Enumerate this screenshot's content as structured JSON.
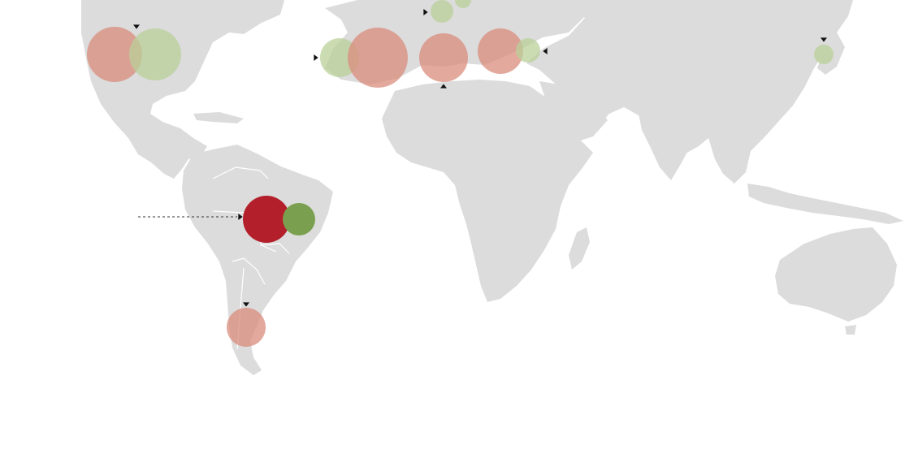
{
  "map": {
    "colors": {
      "land": "#dcdcdc",
      "ocean": "#ffffff",
      "red_strong": "#b3202b",
      "red_soft": "#d98c7c",
      "green_strong": "#7aa04f",
      "green_soft": "#b9d09a"
    },
    "bubbles": [
      {
        "name": "usa-red",
        "color": "red_soft",
        "opacity": 0.75
      },
      {
        "name": "usa-green",
        "color": "green_soft",
        "opacity": 0.75
      },
      {
        "name": "iberia-green",
        "color": "green_soft",
        "opacity": 0.75
      },
      {
        "name": "iberia-red",
        "color": "red_soft",
        "opacity": 0.75
      },
      {
        "name": "north-africa-red",
        "color": "red_soft",
        "opacity": 0.75
      },
      {
        "name": "east-med-red",
        "color": "red_soft",
        "opacity": 0.75
      },
      {
        "name": "east-med-green",
        "color": "green_soft",
        "opacity": 0.75
      },
      {
        "name": "central-europe-green-1",
        "color": "green_soft",
        "opacity": 0.75
      },
      {
        "name": "central-europe-green-2",
        "color": "green_soft",
        "opacity": 0.75
      },
      {
        "name": "japan-green",
        "color": "green_soft",
        "opacity": 0.75
      },
      {
        "name": "brazil-red",
        "color": "red_strong",
        "opacity": 1
      },
      {
        "name": "brazil-green",
        "color": "green_strong",
        "opacity": 1
      },
      {
        "name": "argentina-red",
        "color": "red_soft",
        "opacity": 0.75
      }
    ],
    "markers": [
      {
        "name": "usa-marker",
        "direction": "down"
      },
      {
        "name": "central-europe-marker",
        "direction": "right"
      },
      {
        "name": "iberia-marker",
        "direction": "right"
      },
      {
        "name": "north-africa-marker",
        "direction": "up"
      },
      {
        "name": "east-med-marker",
        "direction": "left"
      },
      {
        "name": "japan-marker",
        "direction": "down"
      },
      {
        "name": "argentina-marker",
        "direction": "down"
      },
      {
        "name": "brazil-arrow-marker",
        "direction": "right"
      }
    ]
  }
}
